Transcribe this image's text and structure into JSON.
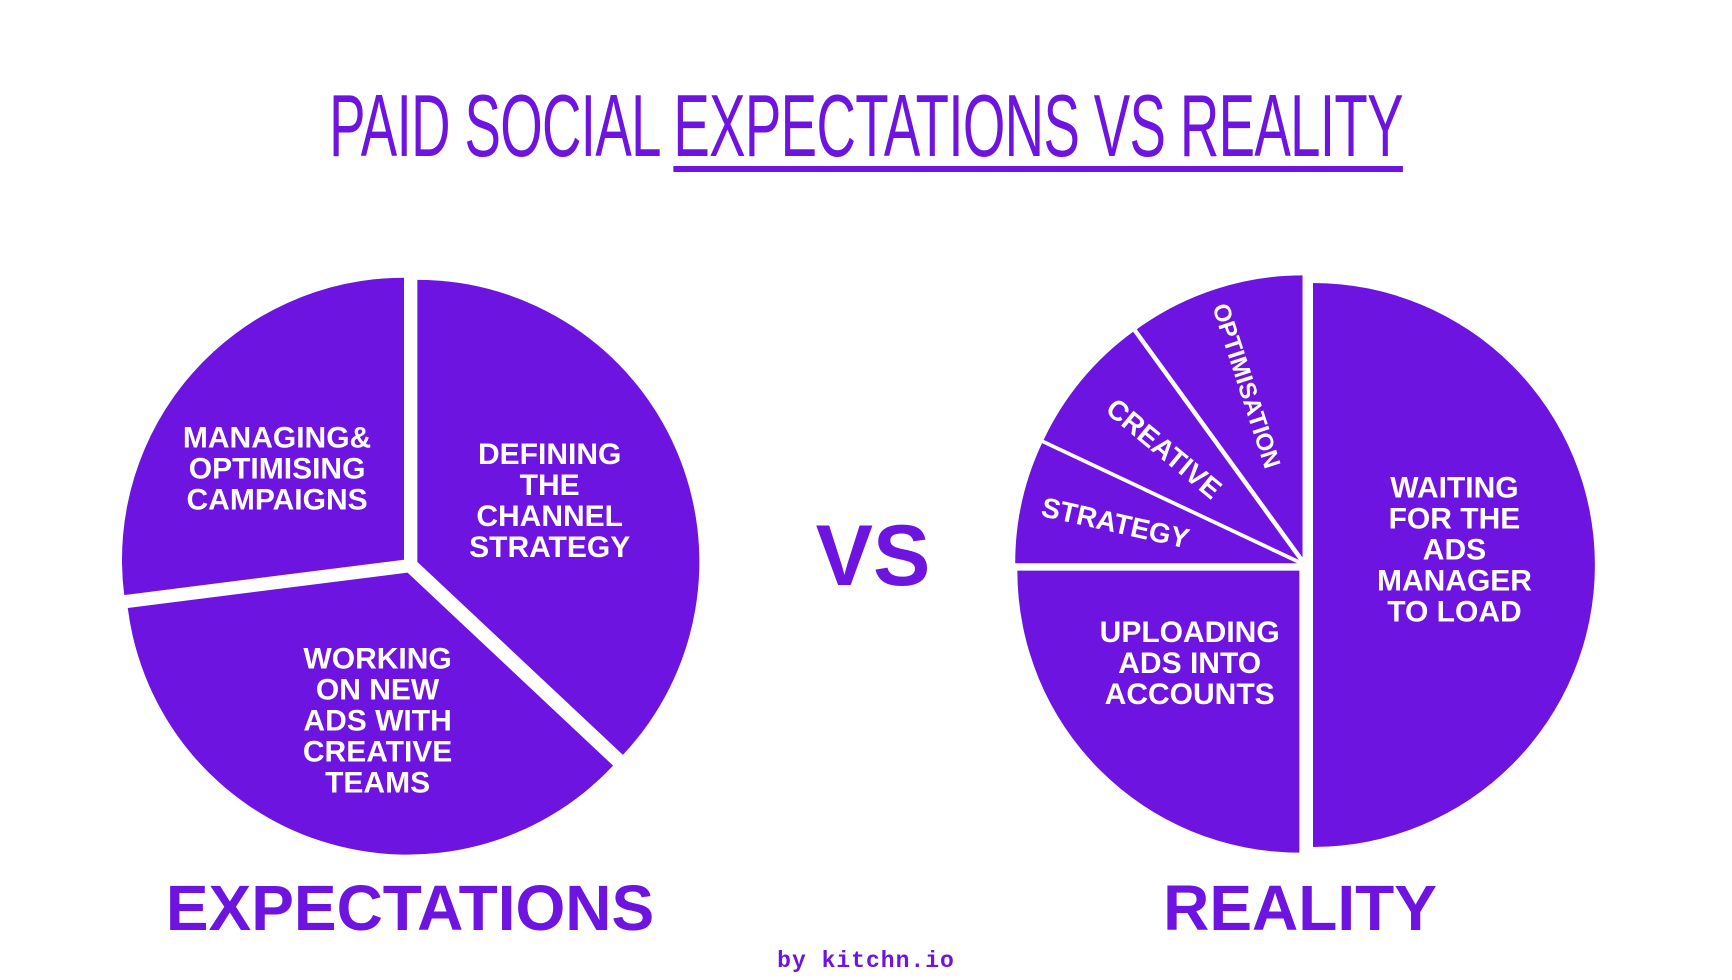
{
  "title": {
    "part1": "PAID  SOCIAL ",
    "part2": "EXPECTATIONS VS REALITY"
  },
  "vs_label": "VS",
  "footer": "by kitchn.io",
  "colors": {
    "accent": "#6d14e0",
    "background": "#ffffff",
    "label": "#ffffff"
  },
  "chart_data": [
    {
      "type": "pie",
      "title": "EXPECTATIONS",
      "slices": [
        {
          "label_lines": [
            "DEFINING",
            "THE",
            "CHANNEL",
            "STRATEGY"
          ],
          "value": 37
        },
        {
          "label_lines": [
            "WORKING",
            "ON NEW",
            "ADS WITH",
            "CREATIVE",
            "TEAMS"
          ],
          "value": 36
        },
        {
          "label_lines": [
            "MANAGING&",
            "OPTIMISING",
            "CAMPAIGNS"
          ],
          "value": 27
        }
      ]
    },
    {
      "type": "pie",
      "title": "REALITY",
      "slices": [
        {
          "label_lines": [
            "WAITING",
            "FOR THE",
            "ADS",
            "MANAGER",
            "TO LOAD"
          ],
          "value": 50
        },
        {
          "label_lines": [
            "UPLOADING",
            "ADS INTO",
            "ACCOUNTS"
          ],
          "value": 25
        },
        {
          "label_lines": [
            "STRATEGY"
          ],
          "value": 7
        },
        {
          "label_lines": [
            "CREATIVE"
          ],
          "value": 8
        },
        {
          "label_lines": [
            "OPTIMISATION"
          ],
          "value": 10
        }
      ]
    }
  ]
}
